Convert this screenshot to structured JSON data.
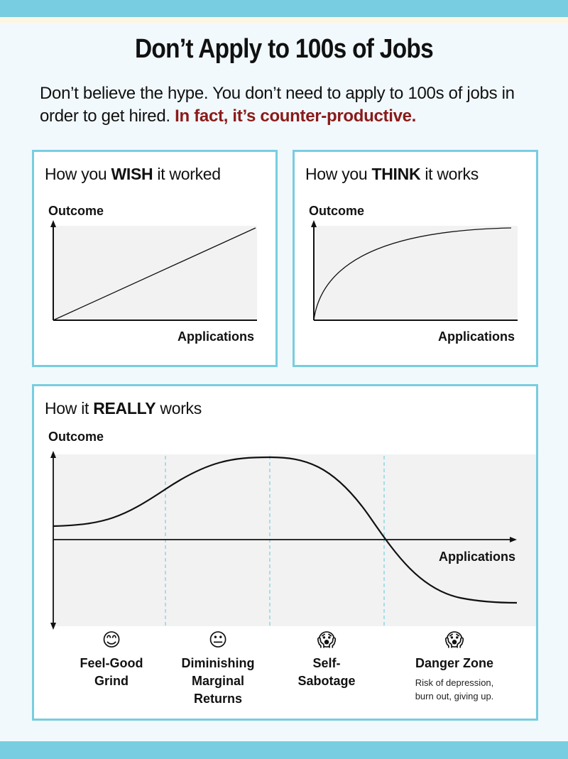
{
  "title": "Don’t Apply to 100s of Jobs",
  "intro": {
    "text": "Don’t believe the hype. You don’t need to apply to 100s of jobs in order to get hired. ",
    "highlight": "In fact, it’s counter-productive."
  },
  "colors": {
    "accent": "#78cde0",
    "highlight": "#8b1a1a",
    "plot_background": "#f2f2f2"
  },
  "panels": {
    "wish": {
      "title_pre": "How you ",
      "title_bold": "WISH",
      "title_post": " it worked",
      "ylabel": "Outcome",
      "xlabel": "Applications"
    },
    "think": {
      "title_pre": "How you ",
      "title_bold": "THINK",
      "title_post": " it works",
      "ylabel": "Outcome",
      "xlabel": "Applications"
    },
    "really": {
      "title_pre": "How it ",
      "title_bold": "REALLY",
      "title_post": " works",
      "ylabel": "Outcome",
      "xlabel": "Applications",
      "stages": [
        {
          "emoji": "😊",
          "emoji_name": "smiling-face-icon",
          "label_line1": "Feel-Good",
          "label_line2": "Grind"
        },
        {
          "emoji": "😐",
          "emoji_name": "neutral-face-icon",
          "label_line1": "Diminishing",
          "label_line2": "Marginal",
          "label_line3": "Returns"
        },
        {
          "emoji": "😱",
          "emoji_name": "screaming-face-icon",
          "label_line1": "Self-",
          "label_line2": "Sabotage"
        },
        {
          "emoji": "😱",
          "emoji_name": "screaming-face-icon",
          "label_line1": "Danger Zone",
          "sub_line1": "Risk of depression,",
          "sub_line2": "burn out, giving up."
        }
      ]
    }
  }
}
